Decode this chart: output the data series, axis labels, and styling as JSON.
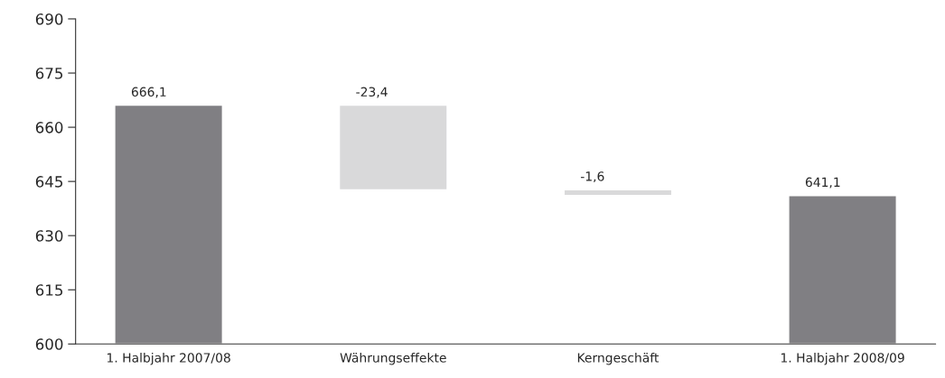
{
  "chart_data": {
    "type": "bar",
    "categories": [
      "1. Halbjahr 2007/08",
      "Währungseffekte",
      "Kerngeschäft",
      "1. Halbjahr 2008/09"
    ],
    "base": [
      600,
      666.1,
      642.7,
      600
    ],
    "values": [
      66.1,
      -23.4,
      -1.6,
      41.1
    ],
    "value_labels": [
      "666,1",
      "-23,4",
      "-1,6",
      "641,1"
    ],
    "colors": [
      "#807f83",
      "#d9d9da",
      "#d9d9da",
      "#807f83"
    ],
    "ylim": [
      600,
      690
    ],
    "yticks": [
      600,
      615,
      630,
      645,
      660,
      675,
      690
    ],
    "grid": false
  }
}
